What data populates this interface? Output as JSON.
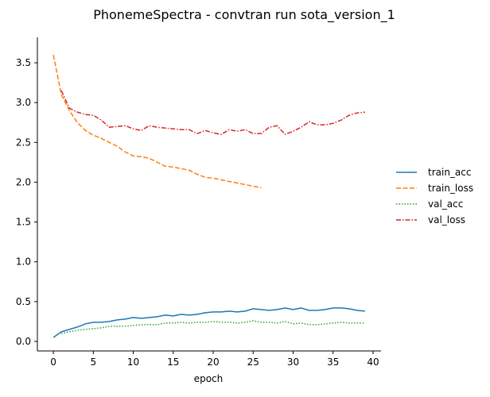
{
  "chart_data": {
    "type": "line",
    "title": "PhonemeSpectra - convtran run sota_version_1",
    "xlabel": "epoch",
    "ylabel": "",
    "xlim": [
      -2,
      41
    ],
    "ylim": [
      -0.12,
      3.82
    ],
    "xticks": [
      0,
      5,
      10,
      15,
      20,
      25,
      30,
      35,
      40
    ],
    "yticks": [
      0.0,
      0.5,
      1.0,
      1.5,
      2.0,
      2.5,
      3.0,
      3.5
    ],
    "xtick_labels": [
      "0",
      "5",
      "10",
      "15",
      "20",
      "25",
      "30",
      "35",
      "40"
    ],
    "ytick_labels": [
      "0.0",
      "0.5",
      "1.0",
      "1.5",
      "2.0",
      "2.5",
      "3.0",
      "3.5"
    ],
    "grid": false,
    "legend_position": "right",
    "series": [
      {
        "name": "train_acc",
        "color": "#1f77b4",
        "dash": "solid",
        "x": [
          0,
          1,
          2,
          3,
          4,
          5,
          6,
          7,
          8,
          9,
          10,
          11,
          12,
          13,
          14,
          15,
          16,
          17,
          18,
          19,
          20,
          21,
          22,
          23,
          24,
          25,
          26,
          27,
          28,
          29,
          30,
          31,
          32,
          33,
          34,
          35,
          36,
          37,
          38,
          39
        ],
        "y": [
          0.05,
          0.12,
          0.15,
          0.18,
          0.22,
          0.24,
          0.24,
          0.25,
          0.27,
          0.28,
          0.3,
          0.29,
          0.3,
          0.31,
          0.33,
          0.32,
          0.34,
          0.33,
          0.34,
          0.36,
          0.37,
          0.37,
          0.38,
          0.37,
          0.38,
          0.41,
          0.4,
          0.39,
          0.4,
          0.42,
          0.4,
          0.42,
          0.39,
          0.39,
          0.4,
          0.42,
          0.42,
          0.41,
          0.39,
          0.38
        ]
      },
      {
        "name": "train_loss",
        "color": "#ff7f0e",
        "dash": "dashed",
        "x": [
          0,
          1,
          2,
          3,
          4,
          5,
          6,
          7,
          8,
          9,
          10,
          11,
          12,
          13,
          14,
          15,
          16,
          17,
          18,
          19,
          20,
          21,
          22,
          23,
          24,
          25,
          26
        ],
        "y": [
          3.6,
          3.1,
          2.9,
          2.75,
          2.65,
          2.59,
          2.55,
          2.5,
          2.45,
          2.38,
          2.33,
          2.32,
          2.3,
          2.25,
          2.2,
          2.19,
          2.17,
          2.15,
          2.1,
          2.06,
          2.05,
          2.03,
          2.01,
          1.99,
          1.97,
          1.95,
          1.93
        ]
      },
      {
        "name": "val_acc",
        "color": "#2ca02c",
        "dash": "dotted",
        "x": [
          1,
          2,
          3,
          4,
          5,
          6,
          7,
          8,
          9,
          10,
          11,
          12,
          13,
          14,
          15,
          16,
          17,
          18,
          19,
          20,
          21,
          22,
          23,
          24,
          25,
          26,
          27,
          28,
          29,
          30,
          31,
          32,
          33,
          34,
          35,
          36,
          37,
          38,
          39
        ],
        "y": [
          0.1,
          0.12,
          0.14,
          0.15,
          0.16,
          0.17,
          0.19,
          0.19,
          0.19,
          0.2,
          0.21,
          0.21,
          0.21,
          0.23,
          0.23,
          0.24,
          0.23,
          0.24,
          0.24,
          0.25,
          0.24,
          0.24,
          0.23,
          0.24,
          0.26,
          0.24,
          0.24,
          0.23,
          0.25,
          0.22,
          0.23,
          0.21,
          0.21,
          0.22,
          0.23,
          0.24,
          0.23,
          0.23,
          0.23
        ]
      },
      {
        "name": "val_loss",
        "color": "#d62728",
        "dash": "dashdot",
        "x": [
          1,
          2,
          3,
          4,
          5,
          6,
          7,
          8,
          9,
          10,
          11,
          12,
          13,
          14,
          15,
          16,
          17,
          18,
          19,
          20,
          21,
          22,
          23,
          24,
          25,
          26,
          27,
          28,
          29,
          30,
          31,
          32,
          33,
          34,
          35,
          36,
          37,
          38,
          39
        ],
        "y": [
          3.15,
          2.93,
          2.88,
          2.85,
          2.84,
          2.78,
          2.69,
          2.7,
          2.71,
          2.67,
          2.65,
          2.71,
          2.69,
          2.68,
          2.67,
          2.66,
          2.66,
          2.61,
          2.65,
          2.62,
          2.6,
          2.66,
          2.64,
          2.66,
          2.61,
          2.61,
          2.69,
          2.71,
          2.6,
          2.64,
          2.69,
          2.76,
          2.72,
          2.72,
          2.74,
          2.78,
          2.84,
          2.87,
          2.88
        ]
      }
    ]
  }
}
